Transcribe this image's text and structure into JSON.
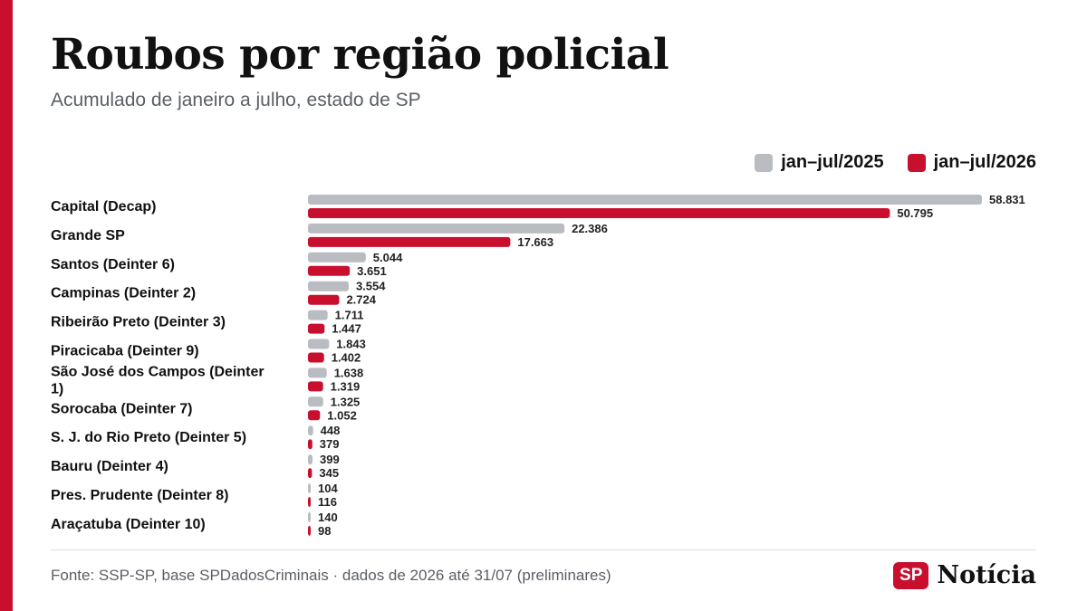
{
  "header": {
    "title": "Roubos por região policial",
    "subtitle": "Acumulado de janeiro a julho, estado de SP"
  },
  "legend": {
    "items": [
      {
        "label": "jan–jul/2025",
        "color": "#b9bcc1"
      },
      {
        "label": "jan–jul/2026",
        "color": "#c8102e"
      }
    ]
  },
  "chart_data": {
    "type": "bar",
    "orientation": "horizontal",
    "title": "Roubos por região policial",
    "subtitle": "Acumulado de janeiro a julho, estado de SP",
    "categories": [
      "Capital (Decap)",
      "Grande SP",
      "Santos (Deinter 6)",
      "Campinas (Deinter 2)",
      "Ribeirão Preto (Deinter 3)",
      "Piracicaba (Deinter 9)",
      "São José dos Campos (Deinter 1)",
      "Sorocaba (Deinter 7)",
      "S. J. do Rio Preto (Deinter 5)",
      "Bauru (Deinter 4)",
      "Pres. Prudente (Deinter 8)",
      "Araçatuba (Deinter 10)"
    ],
    "series": [
      {
        "name": "jan–jul/2025",
        "color": "#b9bcc1",
        "values": [
          58831,
          22386,
          5044,
          3554,
          1711,
          1843,
          1638,
          1325,
          448,
          399,
          104,
          140
        ],
        "labels": [
          "58.831",
          "22.386",
          "5.044",
          "3.554",
          "1.711",
          "1.843",
          "1.638",
          "1.325",
          "448",
          "399",
          "104",
          "140"
        ]
      },
      {
        "name": "jan–jul/2026",
        "color": "#c8102e",
        "values": [
          50795,
          17663,
          3651,
          2724,
          1447,
          1402,
          1319,
          1052,
          379,
          345,
          116,
          98
        ],
        "labels": [
          "50.795",
          "17.663",
          "3.651",
          "2.724",
          "1.447",
          "1.402",
          "1.319",
          "1.052",
          "379",
          "345",
          "116",
          "98"
        ]
      }
    ],
    "xlim": [
      0,
      58831
    ],
    "grid": false,
    "legend_position": "top-right"
  },
  "footer": {
    "source": "Fonte: SSP-SP, base SPDadosCriminais · dados de 2026 até 31/07 (preliminares)",
    "logo_badge": "SP",
    "logo_text": "Notícia"
  }
}
